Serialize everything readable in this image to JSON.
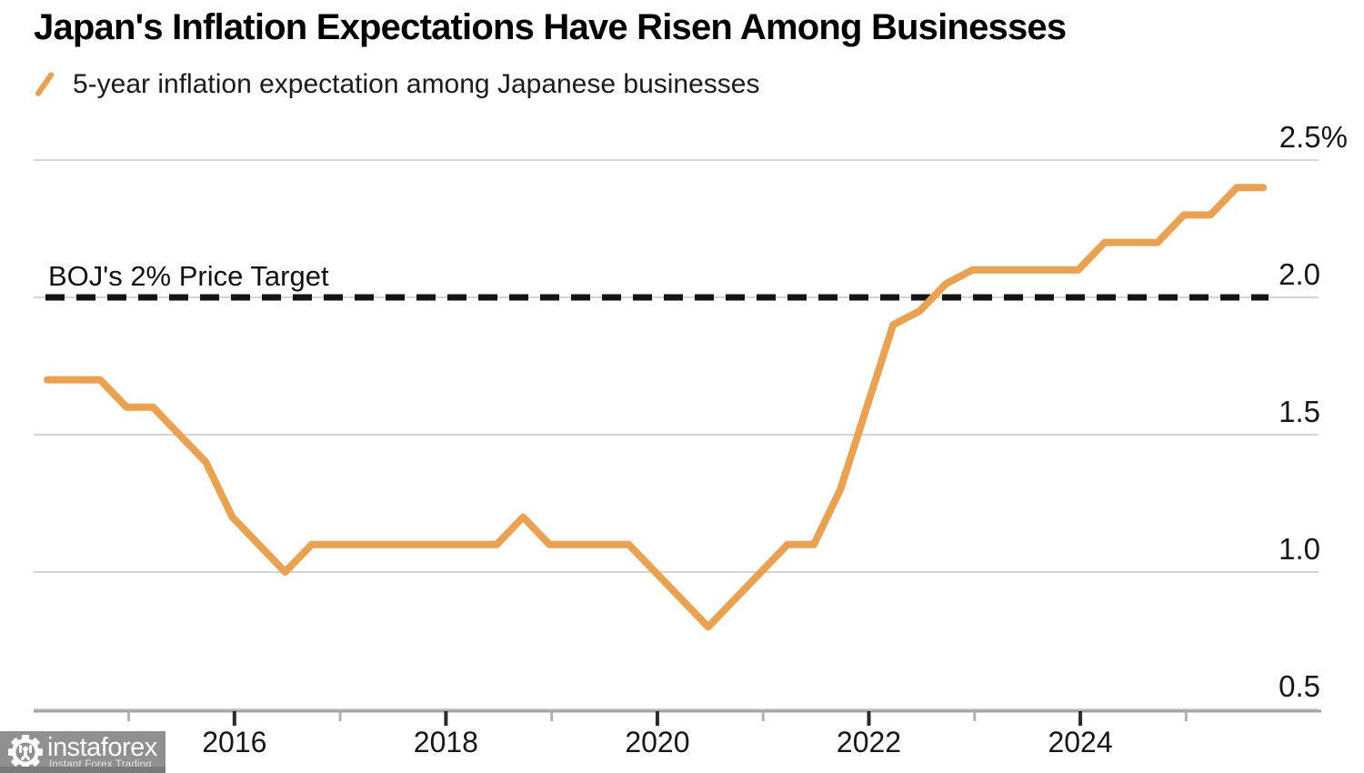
{
  "header": {
    "title": "Japan's Inflation Expectations Have Risen Among Businesses",
    "legend": {
      "marker": "orange-slash",
      "label": "5-year inflation expectation among Japanese businesses"
    }
  },
  "annotation": {
    "target_label": "BOJ's 2% Price Target"
  },
  "chart_data": {
    "type": "line",
    "title": "Japan's Inflation Expectations Have Risen Among Businesses",
    "xlabel": "",
    "ylabel": "",
    "unit": "%",
    "grid": true,
    "legend_position": "top-left-above-chart",
    "ylim": [
      0.35,
      2.6
    ],
    "x_range_years": [
      2014,
      2025.75
    ],
    "x_quarters": [
      "2014 Q1",
      "2014 Q2",
      "2014 Q3",
      "2014 Q4",
      "2015 Q1",
      "2015 Q2",
      "2015 Q3",
      "2015 Q4",
      "2016 Q1",
      "2016 Q2",
      "2016 Q3",
      "2016 Q4",
      "2017 Q1",
      "2017 Q2",
      "2017 Q3",
      "2017 Q4",
      "2018 Q1",
      "2018 Q2",
      "2018 Q3",
      "2018 Q4",
      "2019 Q1",
      "2019 Q2",
      "2019 Q3",
      "2019 Q4",
      "2020 Q1",
      "2020 Q2",
      "2020 Q3",
      "2020 Q4",
      "2021 Q1",
      "2021 Q2",
      "2021 Q3",
      "2021 Q4",
      "2022 Q1",
      "2022 Q2",
      "2022 Q3",
      "2022 Q4",
      "2023 Q1",
      "2023 Q2",
      "2023 Q3",
      "2023 Q4",
      "2024 Q1",
      "2024 Q2",
      "2024 Q3",
      "2024 Q4",
      "2025 Q1",
      "2025 Q2",
      "2025 Q3"
    ],
    "series": [
      {
        "name": "5-year inflation expectation among Japanese businesses",
        "color": "#EBA14E",
        "values": [
          1.7,
          1.7,
          1.7,
          1.6,
          1.6,
          1.5,
          1.4,
          1.2,
          1.1,
          1.0,
          1.1,
          1.1,
          1.1,
          1.1,
          1.1,
          1.1,
          1.1,
          1.1,
          1.2,
          1.1,
          1.1,
          1.1,
          1.1,
          1.0,
          0.9,
          0.8,
          0.9,
          1.0,
          1.1,
          1.1,
          1.3,
          1.6,
          1.9,
          1.95,
          2.05,
          2.1,
          2.1,
          2.1,
          2.1,
          2.1,
          2.2,
          2.2,
          2.2,
          2.3,
          2.3,
          2.4,
          2.4
        ]
      }
    ],
    "reference_line": {
      "value": 2.0,
      "label": "BOJ's 2% Price Target",
      "style": "dashed",
      "color": "#141414"
    },
    "yticks": [
      {
        "v": 2.5,
        "label": "2.5%"
      },
      {
        "v": 2.0,
        "label": "2.0"
      },
      {
        "v": 1.5,
        "label": "1.5"
      },
      {
        "v": 1.0,
        "label": "1.0"
      },
      {
        "v": 0.5,
        "label": "0.5"
      }
    ],
    "xticks": {
      "major": [
        {
          "year": 2016,
          "label": "2016"
        },
        {
          "year": 2018,
          "label": "2018"
        },
        {
          "year": 2020,
          "label": "2020"
        },
        {
          "year": 2022,
          "label": "2022"
        },
        {
          "year": 2024,
          "label": "2024"
        }
      ],
      "minor_years": [
        2015,
        2017,
        2019,
        2021,
        2023,
        2025
      ]
    }
  },
  "colors": {
    "series_orange": "#EBA14E",
    "dashed_black": "#141414",
    "gridline": "#d4d4d4",
    "axis": "#a3a3a3",
    "major_tick": "#2b2b2b",
    "minor_tick": "#b2b2b2"
  },
  "watermark": {
    "brand": "instaforex",
    "tagline": "Instant Forex Trading"
  }
}
